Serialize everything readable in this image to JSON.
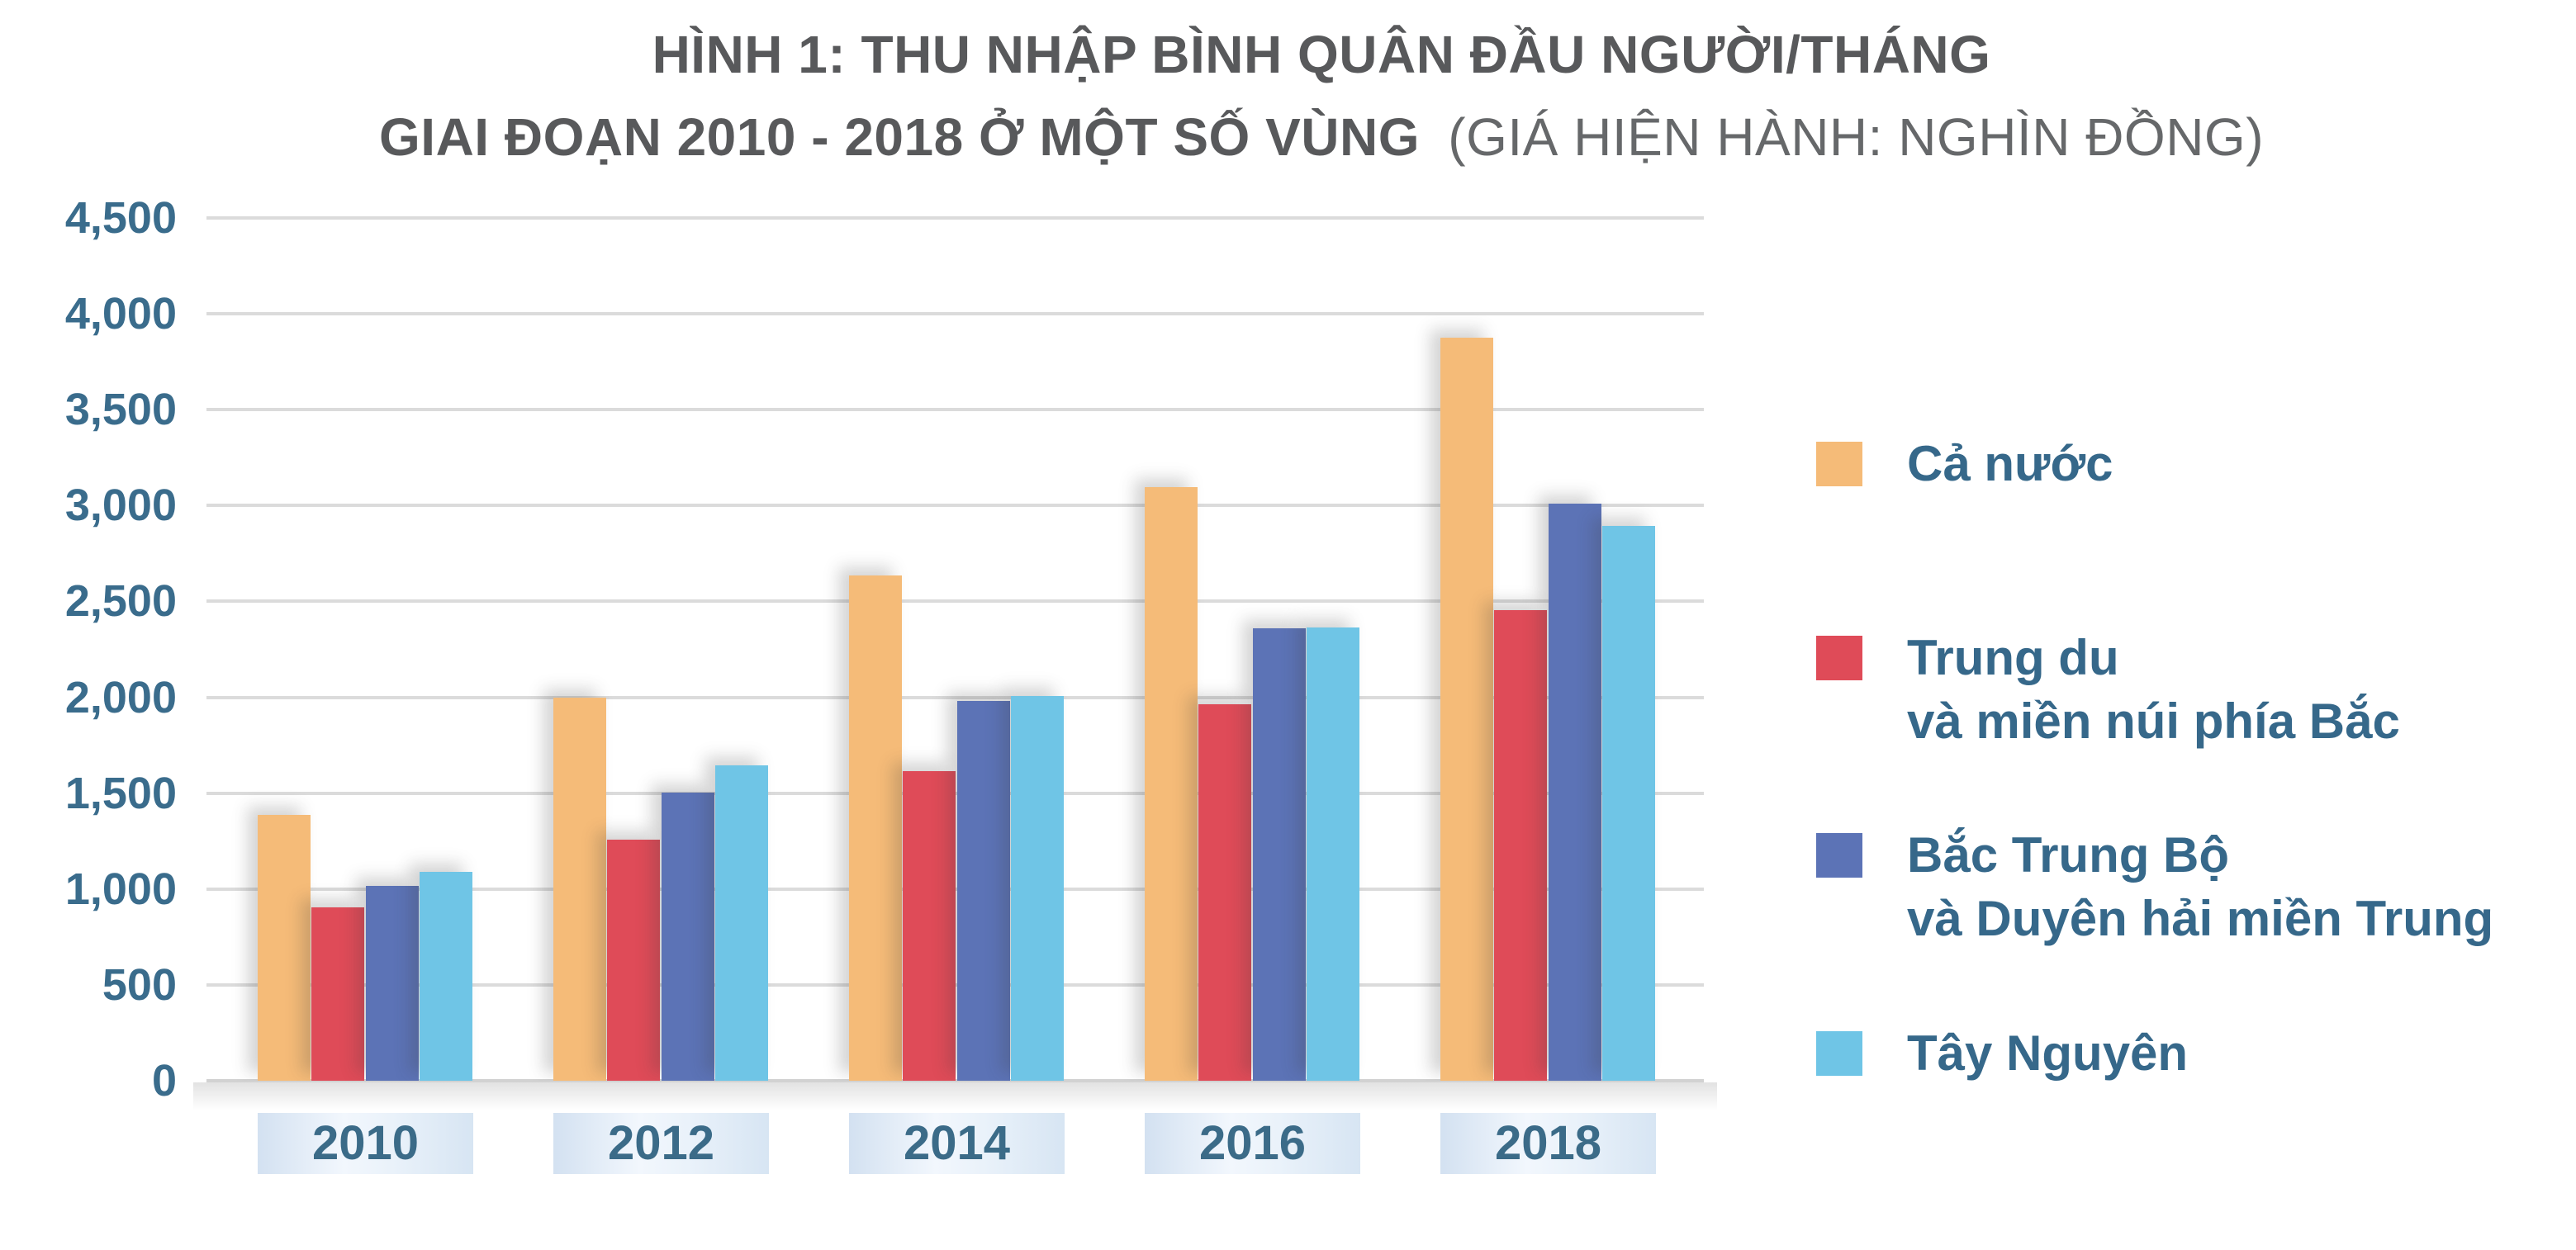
{
  "title": {
    "line1": "HÌNH 1: THU NHẬP BÌNH QUÂN ĐẦU NGƯỜI/THÁNG",
    "line2_bold": "GIAI ĐOẠN 2010 - 2018 Ở MỘT SỐ VÙNG",
    "line2_note": "(GIÁ HIỆN HÀNH: NGHÌN ĐỒNG)"
  },
  "chart_data": {
    "type": "bar",
    "title": "HÌNH 1: THU NHẬP BÌNH QUÂN ĐẦU NGƯỜI/THÁNG GIAI ĐOẠN 2010 - 2018 Ở MỘT SỐ VÙNG",
    "unit_note": "GIÁ HIỆN HÀNH: NGHÌN ĐỒNG",
    "categories": [
      "2010",
      "2012",
      "2014",
      "2016",
      "2018"
    ],
    "series": [
      {
        "name": "Cả nước",
        "color": "#F5BB78",
        "values": [
          1387,
          2000,
          2637,
          3098,
          3876
        ]
      },
      {
        "name": "Trung du và miền núi phía Bắc",
        "color": "#DF4B58",
        "values": [
          905,
          1258,
          1613,
          1963,
          2455
        ]
      },
      {
        "name": "Bắc Trung Bộ và Duyên hải miền Trung",
        "color": "#5C73B6",
        "values": [
          1018,
          1505,
          1982,
          2358,
          3009
        ]
      },
      {
        "name": "Tây Nguyên",
        "color": "#6FC5E6",
        "values": [
          1088,
          1643,
          2008,
          2366,
          2896
        ]
      }
    ],
    "ylim": [
      0,
      4500
    ],
    "y_ticks": [
      "0",
      "500",
      "1,000",
      "1,500",
      "2,000",
      "2,500",
      "3,000",
      "3,500",
      "4,000",
      "4,500"
    ],
    "grid": true,
    "legend_position": "right"
  },
  "legend": {
    "items": [
      {
        "lines": [
          "Cả nước"
        ],
        "series_index": 0
      },
      {
        "lines": [
          "Trung du",
          "và miền núi phía Bắc"
        ],
        "series_index": 1
      },
      {
        "lines": [
          "Bắc Trung Bộ",
          "và Duyên hải miền Trung"
        ],
        "series_index": 2
      },
      {
        "lines": [
          "Tây Nguyên"
        ],
        "series_index": 3
      }
    ]
  },
  "colors": {
    "title_text": "#58595B",
    "axis_text": "#3A6C8C",
    "legend_text": "#36688A",
    "gridline": "#DBDBDB",
    "x_pill_background": "#E3EDF8"
  }
}
